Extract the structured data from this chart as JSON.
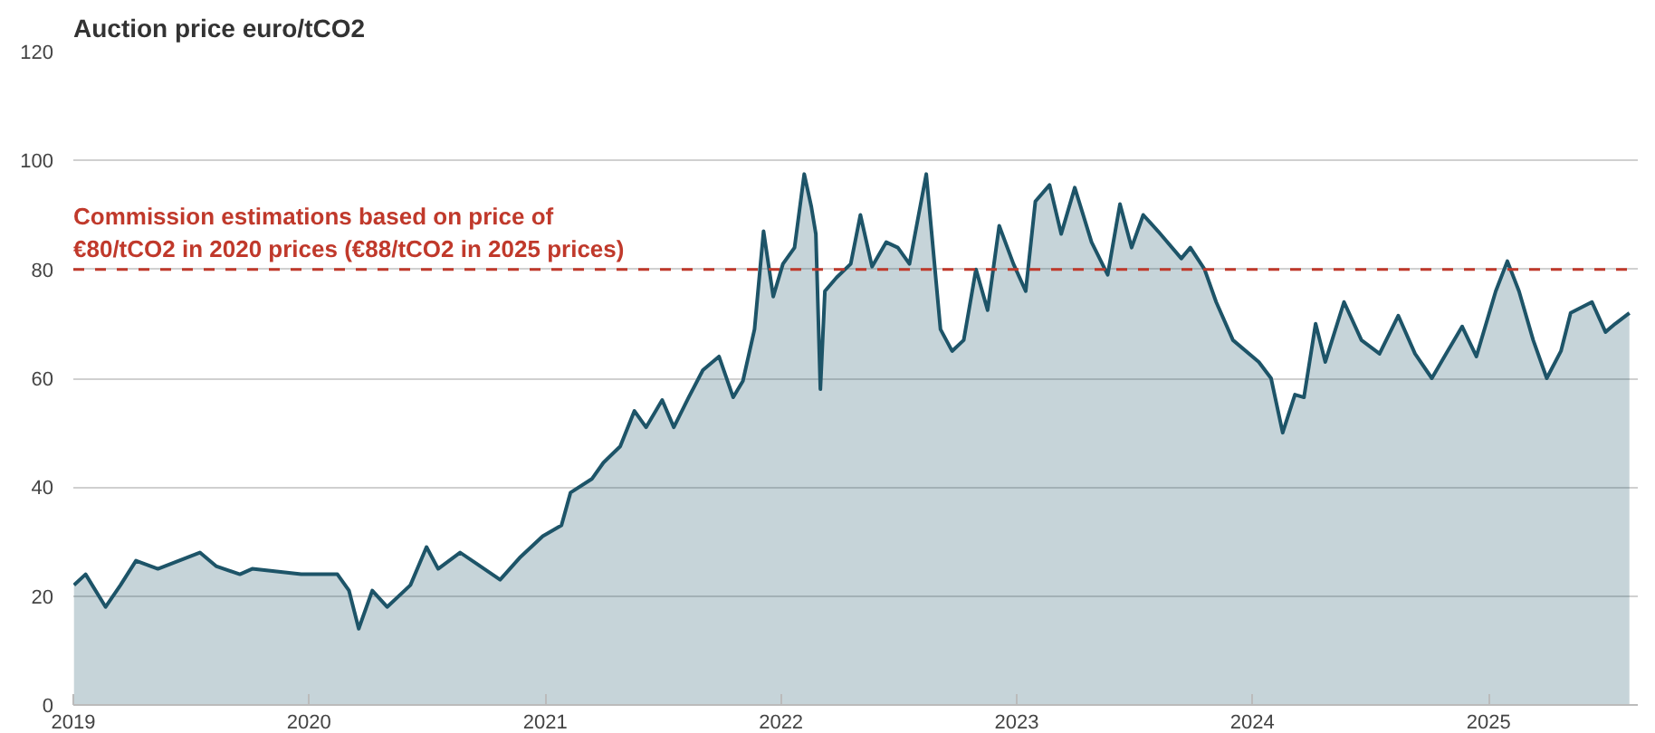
{
  "chart_data": {
    "type": "area",
    "title": "Auction price euro/tCO2",
    "x": [
      "2019-01-02",
      "2019-01-20",
      "2019-02-20",
      "2019-03-15",
      "2019-04-08",
      "2019-05-12",
      "2019-07-16",
      "2019-08-10",
      "2019-09-16",
      "2019-10-05",
      "2019-12-20",
      "2020-02-14",
      "2020-03-03",
      "2020-03-18",
      "2020-04-08",
      "2020-05-01",
      "2020-06-06",
      "2020-07-01",
      "2020-07-19",
      "2020-08-22",
      "2020-09-16",
      "2020-10-23",
      "2020-11-22",
      "2020-12-28",
      "2021-01-26",
      "2021-02-09",
      "2021-03-14",
      "2021-04-01",
      "2021-04-27",
      "2021-05-19",
      "2021-06-06",
      "2021-07-01",
      "2021-07-19",
      "2021-08-11",
      "2021-09-02",
      "2021-09-27",
      "2021-10-19",
      "2021-11-03",
      "2021-11-21",
      "2021-12-05",
      "2021-12-20",
      "2022-01-04",
      "2022-01-22",
      "2022-02-06",
      "2022-02-17",
      "2022-02-24",
      "2022-03-03",
      "2022-03-10",
      "2022-03-28",
      "2022-04-19",
      "2022-05-04",
      "2022-05-22",
      "2022-06-13",
      "2022-07-01",
      "2022-07-19",
      "2022-08-14",
      "2022-09-05",
      "2022-09-23",
      "2022-10-11",
      "2022-10-30",
      "2022-11-17",
      "2022-12-05",
      "2022-12-27",
      "2023-01-15",
      "2023-01-30",
      "2023-02-21",
      "2023-03-11",
      "2023-04-01",
      "2023-04-27",
      "2023-05-22",
      "2023-06-10",
      "2023-06-28",
      "2023-07-16",
      "2023-08-08",
      "2023-09-13",
      "2023-09-27",
      "2023-10-19",
      "2023-11-06",
      "2023-12-02",
      "2024-01-11",
      "2024-01-30",
      "2024-02-17",
      "2024-03-07",
      "2024-03-21",
      "2024-04-08",
      "2024-04-23",
      "2024-05-22",
      "2024-06-18",
      "2024-07-16",
      "2024-08-14",
      "2024-09-09",
      "2024-10-05",
      "2024-10-27",
      "2024-11-21",
      "2024-12-13",
      "2025-01-12",
      "2025-01-30",
      "2025-02-17",
      "2025-03-11",
      "2025-04-01",
      "2025-04-23",
      "2025-05-08",
      "2025-06-10",
      "2025-07-01",
      "2025-07-16",
      "2025-08-07"
    ],
    "series": [
      {
        "color": "#1d5468",
        "values": [
          22,
          24,
          18,
          22,
          26.5,
          25,
          28,
          25.5,
          24,
          25,
          24,
          24,
          21,
          14,
          21,
          18,
          22,
          29,
          25,
          28,
          26,
          23,
          27,
          31,
          33,
          39,
          41.5,
          44.5,
          47.5,
          54,
          51,
          56,
          51,
          56.5,
          61.5,
          64,
          56.5,
          59.5,
          69,
          87,
          75,
          81,
          84,
          97.5,
          91.5,
          86.5,
          58,
          76,
          78.5,
          81,
          90,
          80.5,
          85,
          84,
          81,
          97.5,
          69,
          65,
          67,
          80,
          72.5,
          88,
          81,
          76,
          92.5,
          95.5,
          86.5,
          95,
          85,
          79,
          92,
          84,
          90,
          87,
          82,
          84,
          80,
          74,
          67,
          63,
          60,
          50,
          57,
          56.5,
          70,
          63,
          74,
          67,
          64.5,
          71.5,
          64.5,
          60,
          64.5,
          69.5,
          64,
          76,
          81.5,
          76,
          67,
          60,
          65,
          72,
          74,
          68.5,
          70,
          72
        ]
      }
    ],
    "xlim": [
      "2019-01-01",
      "2025-08-20"
    ],
    "xticks": [
      {
        "value": "2019-01-01",
        "label": "2019"
      },
      {
        "value": "2020-01-01",
        "label": "2020"
      },
      {
        "value": "2021-01-01",
        "label": "2021"
      },
      {
        "value": "2022-01-01",
        "label": "2022"
      },
      {
        "value": "2023-01-01",
        "label": "2023"
      },
      {
        "value": "2024-01-01",
        "label": "2024"
      },
      {
        "value": "2025-01-01",
        "label": "2025"
      }
    ],
    "ylim": [
      0,
      120
    ],
    "yticks": [
      0,
      20,
      40,
      60,
      80,
      100,
      120
    ],
    "grid": "y",
    "ref_lines": [
      {
        "axis": "y",
        "value": 80,
        "label": "Commission estimations based on price of\n€80/tCO2 in 2020 prices (€88/tCO2 in 2025 prices)",
        "color": "#c0392b",
        "line_style": "dashed"
      }
    ]
  }
}
